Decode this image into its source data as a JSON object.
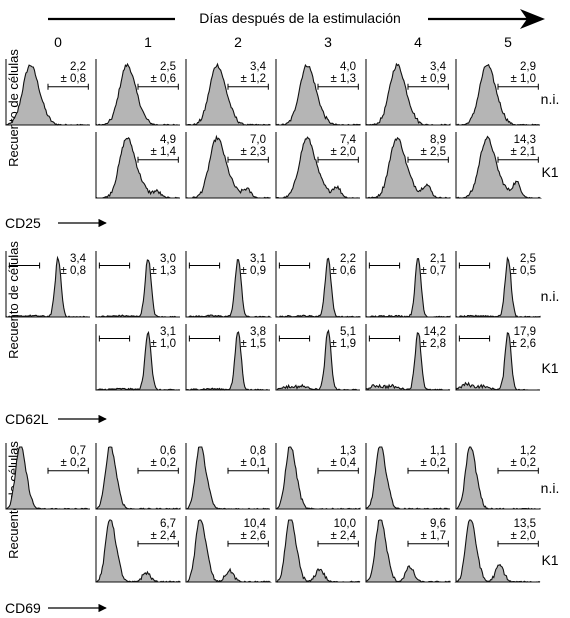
{
  "header": {
    "title": "Días después de la estimulación"
  },
  "days": [
    "0",
    "1",
    "2",
    "3",
    "4",
    "5"
  ],
  "ylabel": "Recuento de células",
  "row_labels": {
    "ni": "n.i.",
    "k1": "K1"
  },
  "panels": [
    {
      "marker": "CD25",
      "shape": "cd25",
      "ni": [
        {
          "mean": "2,2",
          "sd": "± 0,8"
        },
        {
          "mean": "2,5",
          "sd": "± 0,6"
        },
        {
          "mean": "3,4",
          "sd": "± 1,2"
        },
        {
          "mean": "4,0",
          "sd": "± 1,3"
        },
        {
          "mean": "3,4",
          "sd": "± 0,9"
        },
        {
          "mean": "2,9",
          "sd": "± 1,0"
        }
      ],
      "k1": [
        null,
        {
          "mean": "4,9",
          "sd": "± 1,4"
        },
        {
          "mean": "7,0",
          "sd": "± 2,3"
        },
        {
          "mean": "7,4",
          "sd": "± 2,0"
        },
        {
          "mean": "8,9",
          "sd": "± 2,5"
        },
        {
          "mean": "14,3",
          "sd": "± 2,1"
        }
      ]
    },
    {
      "marker": "CD62L",
      "shape": "cd62l",
      "ni": [
        {
          "mean": "3,4",
          "sd": "± 0,8"
        },
        {
          "mean": "3,0",
          "sd": "± 1,3"
        },
        {
          "mean": "3,1",
          "sd": "± 0,9"
        },
        {
          "mean": "2,2",
          "sd": "± 0,6"
        },
        {
          "mean": "2,1",
          "sd": "± 0,7"
        },
        {
          "mean": "2,5",
          "sd": "± 0,5"
        }
      ],
      "k1": [
        null,
        {
          "mean": "3,1",
          "sd": "± 1,0"
        },
        {
          "mean": "3,8",
          "sd": "± 1,5"
        },
        {
          "mean": "5,1",
          "sd": "± 1,9"
        },
        {
          "mean": "14,2",
          "sd": "± 2,8"
        },
        {
          "mean": "17,9",
          "sd": "± 2,6"
        }
      ]
    },
    {
      "marker": "CD69",
      "shape": "cd69",
      "ni": [
        {
          "mean": "0,7",
          "sd": "± 0,2"
        },
        {
          "mean": "0,6",
          "sd": "± 0,2"
        },
        {
          "mean": "0,8",
          "sd": "± 0,1"
        },
        {
          "mean": "1,3",
          "sd": "± 0,4"
        },
        {
          "mean": "1,1",
          "sd": "± 0,2"
        },
        {
          "mean": "1,2",
          "sd": "± 0,2"
        }
      ],
      "k1": [
        null,
        {
          "mean": "6,7",
          "sd": "± 2,4"
        },
        {
          "mean": "10,4",
          "sd": "± 2,6"
        },
        {
          "mean": "10,0",
          "sd": "± 2,4"
        },
        {
          "mean": "9,6",
          "sd": "± 1,7"
        },
        {
          "mean": "13,5",
          "sd": "± 2,0"
        }
      ]
    }
  ],
  "colors": {
    "fill": "#b5b5b5",
    "line": "#111111",
    "axis": "#000000"
  }
}
